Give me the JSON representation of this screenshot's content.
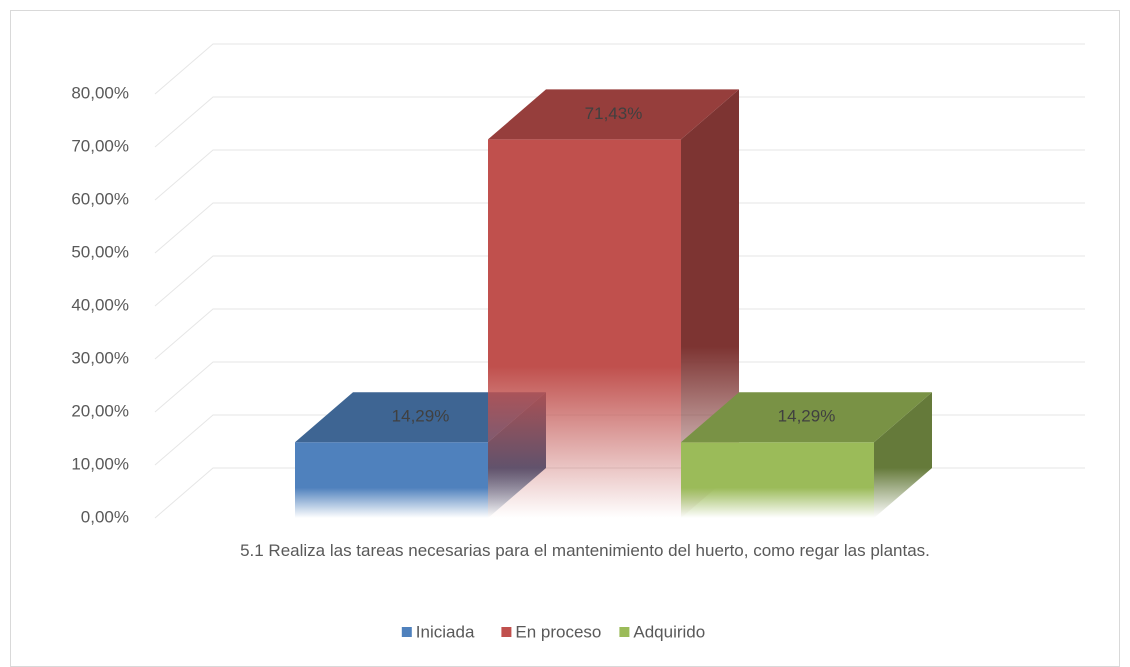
{
  "chart_data": {
    "type": "bar",
    "categories": [
      "5.1 Realiza las tareas necesarias para el mantenimiento del huerto, como regar las plantas."
    ],
    "series": [
      {
        "name": "Iniciada",
        "color": "#4f81bd",
        "values": [
          14.29
        ],
        "value_labels": [
          "14,29%"
        ]
      },
      {
        "name": "En proceso",
        "color": "#c0504d",
        "values": [
          71.43
        ],
        "value_labels": [
          "71,43%"
        ]
      },
      {
        "name": "Adquirido",
        "color": "#9bbb59",
        "values": [
          14.29
        ],
        "value_labels": [
          "14,29%"
        ]
      }
    ],
    "ylim": [
      0,
      80
    ],
    "yticks": [
      {
        "value": 0,
        "label": "0,00%"
      },
      {
        "value": 10,
        "label": "10,00%"
      },
      {
        "value": 20,
        "label": "20,00%"
      },
      {
        "value": 30,
        "label": "30,00%"
      },
      {
        "value": 40,
        "label": "40,00%"
      },
      {
        "value": 50,
        "label": "50,00%"
      },
      {
        "value": 60,
        "label": "60,00%"
      },
      {
        "value": 70,
        "label": "70,00%"
      },
      {
        "value": 80,
        "label": "80,00%"
      }
    ],
    "grid": true,
    "legend": "bottom"
  }
}
